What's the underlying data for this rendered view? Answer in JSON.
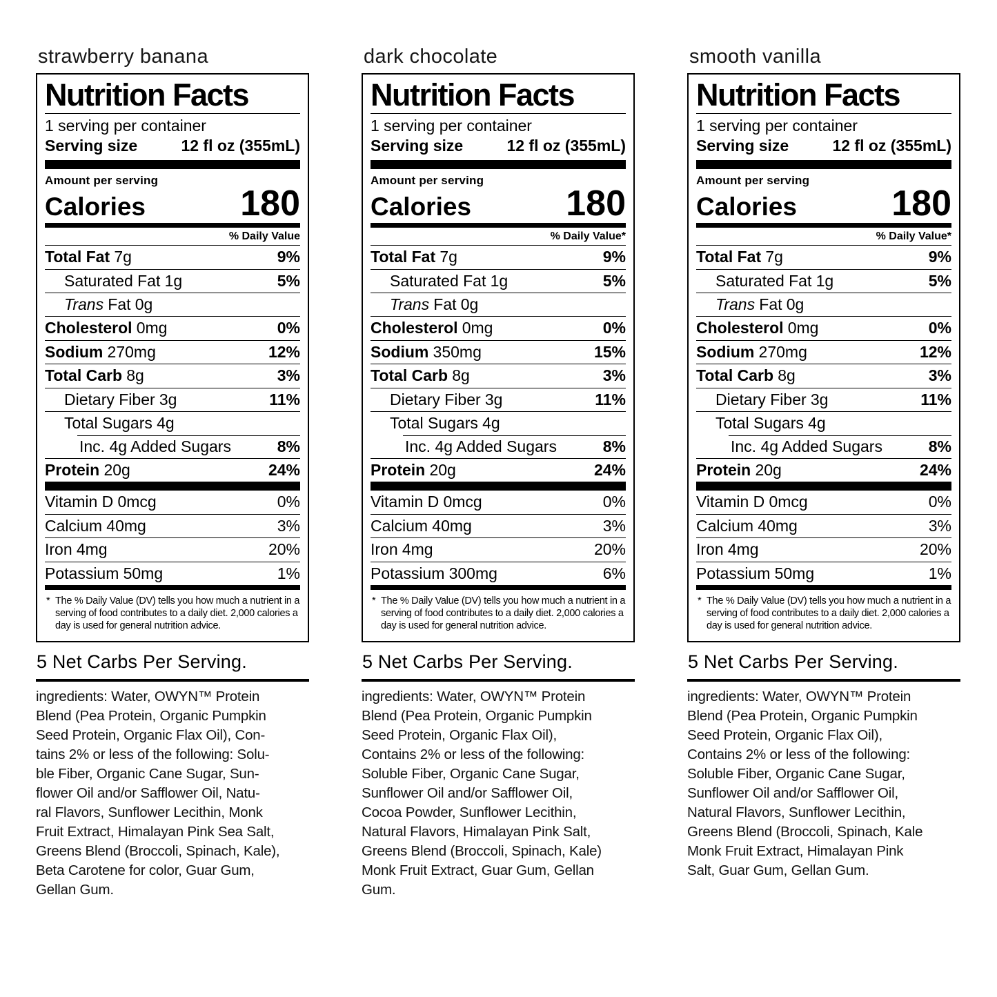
{
  "page": {
    "background": "#ffffff",
    "text_color": "#000000"
  },
  "labels": [
    {
      "flavor": "strawberry banana",
      "nutrition": {
        "title": "Nutrition Facts",
        "servings_per_container": "1 serving per container",
        "serving_size_label": "Serving size",
        "serving_size_value": "12 fl oz (355mL)",
        "amount_per_serving": "Amount per serving",
        "calories_label": "Calories",
        "calories_value": "180",
        "daily_value_header": "% Daily Value",
        "rows": [
          {
            "name_italic": "",
            "name": "Total Fat",
            "amount": "7g",
            "dv": "9%"
          },
          {
            "name_italic": "",
            "name": "Saturated Fat",
            "amount": "1g",
            "dv": "5%"
          },
          {
            "name_italic": "Trans",
            "name": "Fat",
            "amount": "0g",
            "dv": ""
          },
          {
            "name_italic": "",
            "name": "Cholesterol",
            "amount": "0mg",
            "dv": "0%"
          },
          {
            "name_italic": "",
            "name": "Sodium",
            "amount": "270mg",
            "dv": "12%"
          },
          {
            "name_italic": "",
            "name": "Total Carb",
            "amount": "8g",
            "dv": "3%"
          },
          {
            "name_italic": "",
            "name": "Dietary Fiber",
            "amount": "3g",
            "dv": "11%"
          },
          {
            "name_italic": "",
            "name": "Total Sugars",
            "amount": "4g",
            "dv": ""
          },
          {
            "name_italic": "",
            "name": "Inc. 4g Added Sugars",
            "amount": "",
            "dv": "8%"
          },
          {
            "name_italic": "",
            "name": "Protein",
            "amount": "20g",
            "dv": "24%"
          }
        ],
        "vitamins": [
          {
            "name": "Vitamin D",
            "amount": "0mcg",
            "dv": "0%"
          },
          {
            "name": "Calcium",
            "amount": "40mg",
            "dv": "3%"
          },
          {
            "name": "Iron",
            "amount": "4mg",
            "dv": "20%"
          },
          {
            "name": "Potassium",
            "amount": "50mg",
            "dv": "1%"
          }
        ],
        "footnote_marker": "*",
        "footnote": "The % Daily Value (DV) tells you how much a nutrient in a serving of food contributes to a daily diet. 2,000 calories a day is used for general nutrition advice."
      },
      "net_carbs": "5 Net Carbs Per Serving.",
      "ingredients": "ingredients: Water, OWYN™ Protein\nBlend (Pea Protein, Organic Pumpkin\nSeed Protein, Organic Flax Oil),  Con-\ntains 2% or less of the following: Solu-\nble Fiber, Organic Cane Sugar, Sun-\nflower Oil and/or Safflower Oil, Natu-\nral Flavors, Sunflower Lecithin, Monk\nFruit Extract, Himalayan Pink Sea Salt,\nGreens Blend (Broccoli, Spinach, Kale),\nBeta Carotene for color, Guar Gum,\nGellan Gum."
    },
    {
      "flavor": "dark chocolate",
      "nutrition": {
        "title": "Nutrition Facts",
        "servings_per_container": "1 serving per container",
        "serving_size_label": "Serving size",
        "serving_size_value": "12 fl oz (355mL)",
        "amount_per_serving": "Amount per serving",
        "calories_label": "Calories",
        "calories_value": "180",
        "daily_value_header": "% Daily Value*",
        "rows": [
          {
            "name_italic": "",
            "name": "Total Fat",
            "amount": "7g",
            "dv": "9%"
          },
          {
            "name_italic": "",
            "name": "Saturated Fat",
            "amount": "1g",
            "dv": "5%"
          },
          {
            "name_italic": "Trans",
            "name": "Fat",
            "amount": "0g",
            "dv": ""
          },
          {
            "name_italic": "",
            "name": "Cholesterol",
            "amount": "0mg",
            "dv": "0%"
          },
          {
            "name_italic": "",
            "name": "Sodium",
            "amount": "350mg",
            "dv": "15%"
          },
          {
            "name_italic": "",
            "name": "Total Carb",
            "amount": "8g",
            "dv": "3%"
          },
          {
            "name_italic": "",
            "name": "Dietary Fiber",
            "amount": "3g",
            "dv": "11%"
          },
          {
            "name_italic": "",
            "name": "Total Sugars",
            "amount": "4g",
            "dv": ""
          },
          {
            "name_italic": "",
            "name": "Inc. 4g Added Sugars",
            "amount": "",
            "dv": "8%"
          },
          {
            "name_italic": "",
            "name": "Protein",
            "amount": "20g",
            "dv": "24%"
          }
        ],
        "vitamins": [
          {
            "name": "Vitamin D",
            "amount": "0mcg",
            "dv": "0%"
          },
          {
            "name": "Calcium",
            "amount": "40mg",
            "dv": "3%"
          },
          {
            "name": "Iron",
            "amount": "4mg",
            "dv": "20%"
          },
          {
            "name": "Potassium",
            "amount": "300mg",
            "dv": "6%"
          }
        ],
        "footnote_marker": "*",
        "footnote": "The % Daily Value (DV) tells you how much a nutrient in a serving of food contributes to a daily diet. 2,000 calories a day is used for general nutrition advice."
      },
      "net_carbs": "5 Net Carbs Per Serving.",
      "ingredients": "ingredients: Water, OWYN™ Protein\nBlend (Pea Protein, Organic Pumpkin\nSeed Protein, Organic Flax Oil),\nContains 2% or less of the following:\nSoluble Fiber, Organic Cane Sugar,\nSunflower Oil and/or Safflower Oil,\nCocoa Powder, Sunflower Lecithin,\nNatural Flavors, Himalayan Pink Salt,\nGreens Blend (Broccoli, Spinach, Kale)\nMonk Fruit Extract, Guar Gum, Gellan\nGum."
    },
    {
      "flavor": "smooth vanilla",
      "nutrition": {
        "title": "Nutrition Facts",
        "servings_per_container": "1 serving per container",
        "serving_size_label": "Serving size",
        "serving_size_value": "12 fl oz (355mL)",
        "amount_per_serving": "Amount per serving",
        "calories_label": "Calories",
        "calories_value": "180",
        "daily_value_header": "% Daily Value*",
        "rows": [
          {
            "name_italic": "",
            "name": "Total Fat",
            "amount": "7g",
            "dv": "9%"
          },
          {
            "name_italic": "",
            "name": "Saturated Fat",
            "amount": "1g",
            "dv": "5%"
          },
          {
            "name_italic": "Trans",
            "name": "Fat",
            "amount": "0g",
            "dv": ""
          },
          {
            "name_italic": "",
            "name": "Cholesterol",
            "amount": "0mg",
            "dv": "0%"
          },
          {
            "name_italic": "",
            "name": "Sodium",
            "amount": "270mg",
            "dv": "12%"
          },
          {
            "name_italic": "",
            "name": "Total Carb",
            "amount": "8g",
            "dv": "3%"
          },
          {
            "name_italic": "",
            "name": "Dietary Fiber",
            "amount": "3g",
            "dv": "11%"
          },
          {
            "name_italic": "",
            "name": "Total Sugars",
            "amount": "4g",
            "dv": ""
          },
          {
            "name_italic": "",
            "name": "Inc. 4g Added Sugars",
            "amount": "",
            "dv": "8%"
          },
          {
            "name_italic": "",
            "name": "Protein",
            "amount": "20g",
            "dv": "24%"
          }
        ],
        "vitamins": [
          {
            "name": "Vitamin D",
            "amount": "0mcg",
            "dv": "0%"
          },
          {
            "name": "Calcium",
            "amount": "40mg",
            "dv": "3%"
          },
          {
            "name": "Iron",
            "amount": "4mg",
            "dv": "20%"
          },
          {
            "name": "Potassium",
            "amount": "50mg",
            "dv": "1%"
          }
        ],
        "footnote_marker": "*",
        "footnote": "The % Daily Value (DV) tells you how much a nutrient in a serving of food contributes to a daily diet. 2,000 calories a day is used for general nutrition advice."
      },
      "net_carbs": "5 Net Carbs Per Serving.",
      "ingredients": "ingredients: Water, OWYN™ Protein\nBlend (Pea Protein, Organic Pumpkin\nSeed Protein, Organic Flax Oil),\nContains 2% or less of the following:\nSoluble Fiber, Organic Cane Sugar,\nSunflower Oil and/or Safflower Oil,\nNatural Flavors, Sunflower Lecithin,\nGreens Blend (Broccoli, Spinach, Kale\nMonk Fruit Extract, Himalayan Pink\nSalt, Guar Gum, Gellan Gum."
    }
  ]
}
